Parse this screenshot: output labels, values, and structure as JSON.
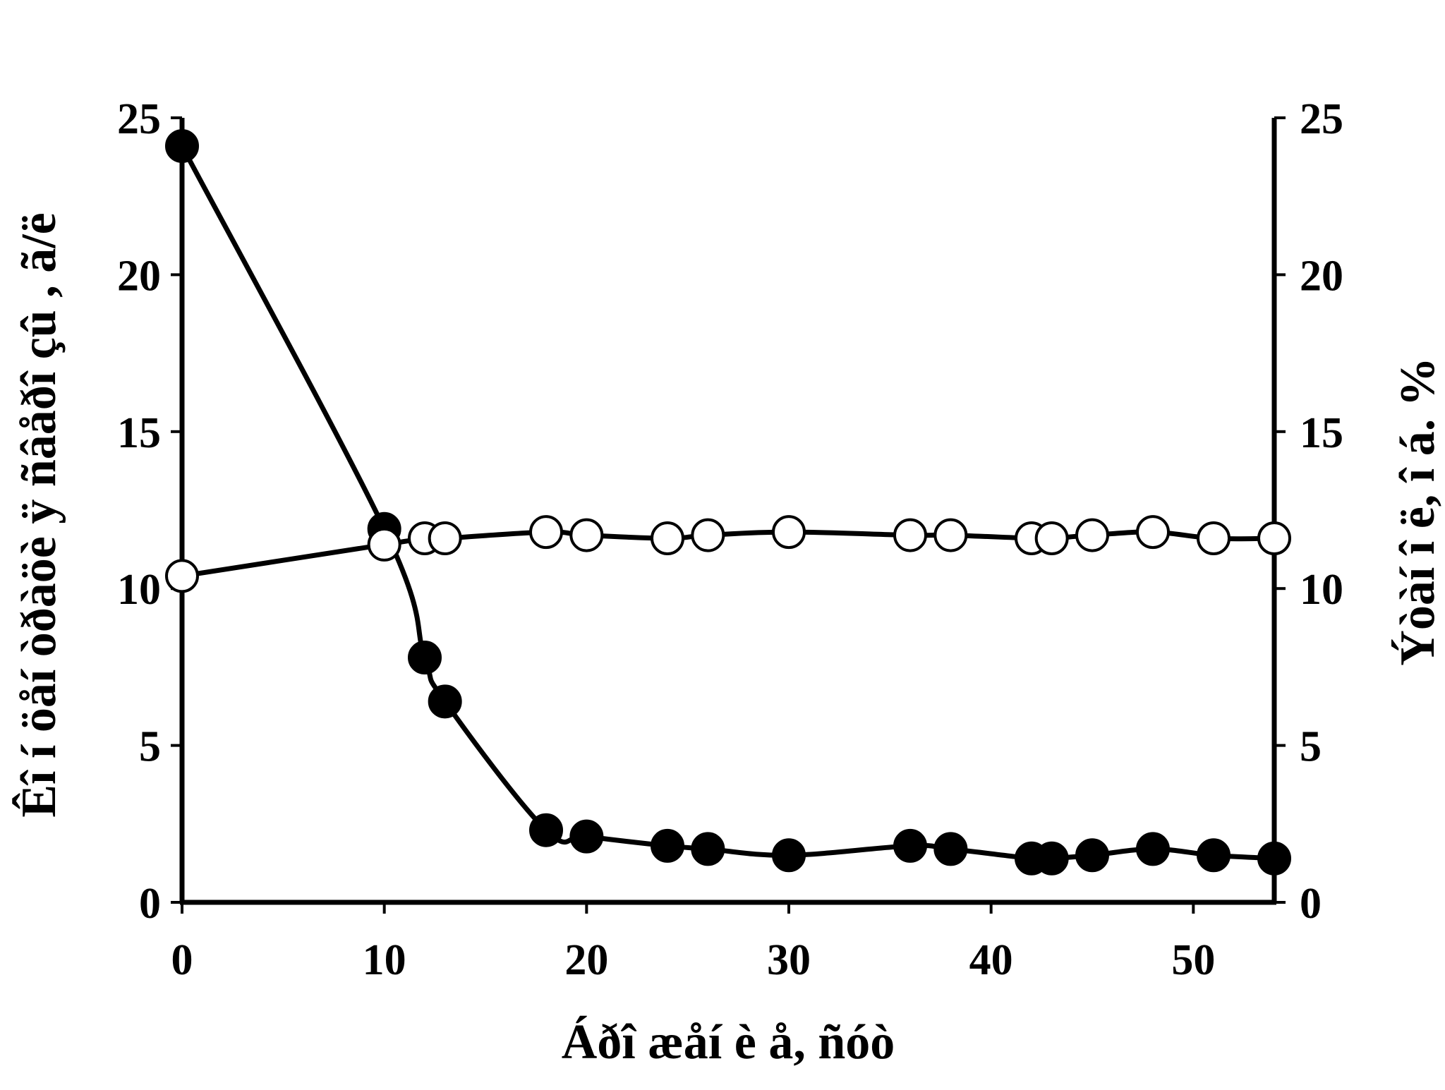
{
  "chart_data": {
    "type": "line",
    "xlabel": "Áðî æåí è å, ñóò",
    "ylabel": "Êî í öåí òðàöè ÿ ñâåðî çû , ã/ë",
    "y2label": "Ýòàí î ë, î á. %",
    "xlim": [
      0,
      54
    ],
    "ylim": [
      0,
      25
    ],
    "y2lim": [
      0,
      25
    ],
    "xticks": [
      0,
      10,
      20,
      30,
      40,
      50
    ],
    "yticks": [
      0,
      5,
      10,
      15,
      20,
      25
    ],
    "y2ticks": [
      0,
      5,
      10,
      15,
      20,
      25
    ],
    "grid": false,
    "legend": "none",
    "series": [
      {
        "marker": "filled-circle",
        "axis": "left",
        "color": "#000000",
        "x": [
          0,
          10,
          12,
          13,
          18,
          20,
          24,
          26,
          30,
          36,
          38,
          42,
          43,
          45,
          48,
          51,
          54
        ],
        "y": [
          24.1,
          11.9,
          7.8,
          6.4,
          2.3,
          2.1,
          1.8,
          1.7,
          1.5,
          1.8,
          1.7,
          1.4,
          1.4,
          1.5,
          1.7,
          1.5,
          1.4
        ]
      },
      {
        "marker": "open-circle",
        "axis": "right",
        "color": "#000000",
        "x": [
          0,
          10,
          12,
          13,
          18,
          20,
          24,
          26,
          30,
          36,
          38,
          42,
          43,
          45,
          48,
          51,
          54
        ],
        "y": [
          10.4,
          11.4,
          11.6,
          11.6,
          11.8,
          11.7,
          11.6,
          11.7,
          11.8,
          11.7,
          11.7,
          11.6,
          11.6,
          11.7,
          11.8,
          11.6,
          11.6
        ]
      }
    ]
  }
}
